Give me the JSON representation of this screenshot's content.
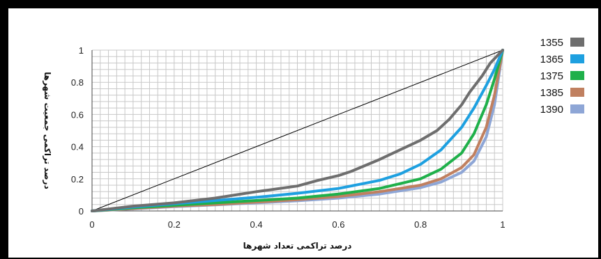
{
  "chart_data": {
    "type": "line",
    "xlabel": "درصد تراکمی تعداد شهرها",
    "ylabel": "درصد تراکمی جمعیت شهرها",
    "xlim": [
      0,
      1
    ],
    "ylim": [
      0,
      1
    ],
    "x_ticks": [
      "0",
      "0.2",
      "0.4",
      "0.6",
      "0.8",
      "1"
    ],
    "y_ticks": [
      "0",
      "0.2",
      "0.4",
      "0.6",
      "0.8",
      "1"
    ],
    "grid": true,
    "legend_position": "right",
    "equality_line": {
      "x": [
        0,
        1
      ],
      "y": [
        0,
        1
      ],
      "color": "#000000"
    },
    "series": [
      {
        "name": "1355",
        "color": "#6e6e6e",
        "x": [
          0,
          0.1,
          0.2,
          0.3,
          0.4,
          0.5,
          0.55,
          0.6,
          0.63,
          0.7,
          0.75,
          0.8,
          0.84,
          0.87,
          0.9,
          0.92,
          0.95,
          0.97,
          1.0
        ],
        "y": [
          0,
          0.03,
          0.05,
          0.08,
          0.12,
          0.155,
          0.19,
          0.22,
          0.245,
          0.32,
          0.38,
          0.44,
          0.5,
          0.57,
          0.66,
          0.74,
          0.84,
          0.92,
          1.0
        ]
      },
      {
        "name": "1365",
        "color": "#1ea0e0",
        "x": [
          0,
          0.1,
          0.2,
          0.3,
          0.4,
          0.5,
          0.6,
          0.7,
          0.75,
          0.8,
          0.85,
          0.9,
          0.93,
          0.96,
          0.98,
          1.0
        ],
        "y": [
          0,
          0.025,
          0.045,
          0.065,
          0.085,
          0.11,
          0.14,
          0.19,
          0.23,
          0.29,
          0.38,
          0.52,
          0.64,
          0.78,
          0.88,
          1.0
        ]
      },
      {
        "name": "1375",
        "color": "#1fb04a",
        "x": [
          0,
          0.1,
          0.2,
          0.3,
          0.4,
          0.5,
          0.6,
          0.7,
          0.8,
          0.85,
          0.9,
          0.93,
          0.96,
          0.98,
          1.0
        ],
        "y": [
          0,
          0.02,
          0.035,
          0.05,
          0.065,
          0.08,
          0.105,
          0.14,
          0.2,
          0.26,
          0.36,
          0.48,
          0.66,
          0.82,
          1.0
        ]
      },
      {
        "name": "1385",
        "color": "#c08060",
        "x": [
          0,
          0.1,
          0.2,
          0.3,
          0.4,
          0.5,
          0.6,
          0.7,
          0.8,
          0.85,
          0.9,
          0.93,
          0.96,
          0.98,
          1.0
        ],
        "y": [
          0,
          0.015,
          0.03,
          0.04,
          0.055,
          0.07,
          0.09,
          0.12,
          0.16,
          0.2,
          0.27,
          0.35,
          0.52,
          0.72,
          1.0
        ]
      },
      {
        "name": "1390",
        "color": "#8ea6d6",
        "x": [
          0,
          0.1,
          0.2,
          0.3,
          0.4,
          0.5,
          0.6,
          0.7,
          0.8,
          0.85,
          0.9,
          0.93,
          0.96,
          0.98,
          1.0
        ],
        "y": [
          0,
          0.013,
          0.027,
          0.038,
          0.05,
          0.063,
          0.08,
          0.105,
          0.145,
          0.18,
          0.24,
          0.31,
          0.46,
          0.66,
          1.0
        ]
      }
    ]
  }
}
